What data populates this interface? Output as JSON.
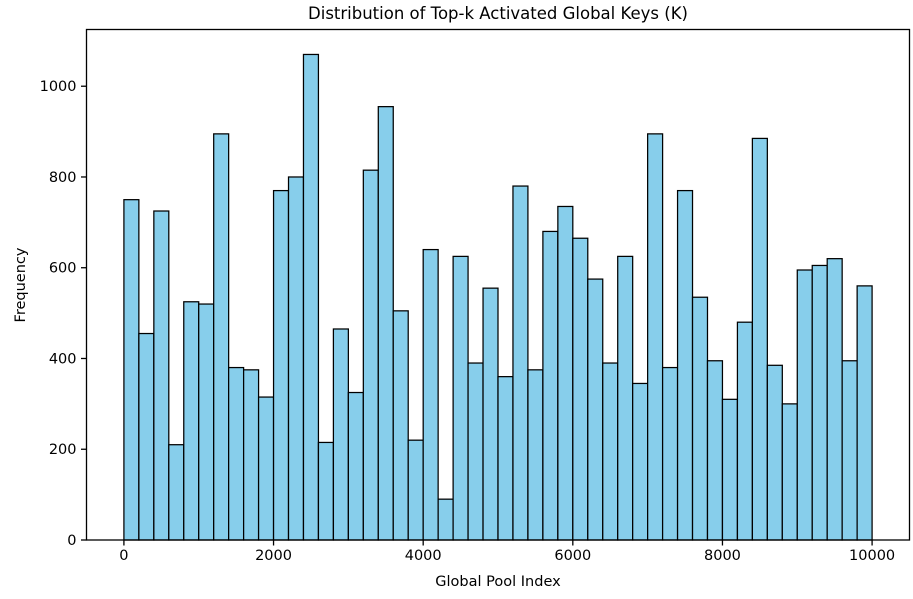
{
  "chart_data": {
    "type": "bar",
    "subtype": "histogram",
    "title": "Distribution of Top-k Activated Global Keys (K)",
    "xlabel": "Global Pool Index",
    "ylabel": "Frequency",
    "bin_start": 0,
    "bin_width": 200,
    "values": [
      750,
      455,
      725,
      210,
      525,
      520,
      895,
      380,
      375,
      315,
      770,
      800,
      1070,
      215,
      465,
      325,
      815,
      955,
      505,
      220,
      640,
      90,
      625,
      390,
      555,
      360,
      780,
      375,
      680,
      735,
      665,
      575,
      390,
      625,
      345,
      895,
      380,
      770,
      535,
      395,
      310,
      480,
      885,
      385,
      300,
      595,
      605,
      620,
      395,
      560
    ],
    "x_ticks": [
      0,
      2000,
      4000,
      6000,
      8000,
      10000
    ],
    "y_ticks": [
      0,
      200,
      400,
      600,
      800,
      1000
    ],
    "xlim": [
      -500,
      10500
    ],
    "ylim": [
      0,
      1125
    ],
    "grid": false,
    "legend": null,
    "bar_color": "#87CEEB",
    "bar_edge_color": "#000000",
    "spine_color": "#000000",
    "text_color": "#000000"
  }
}
